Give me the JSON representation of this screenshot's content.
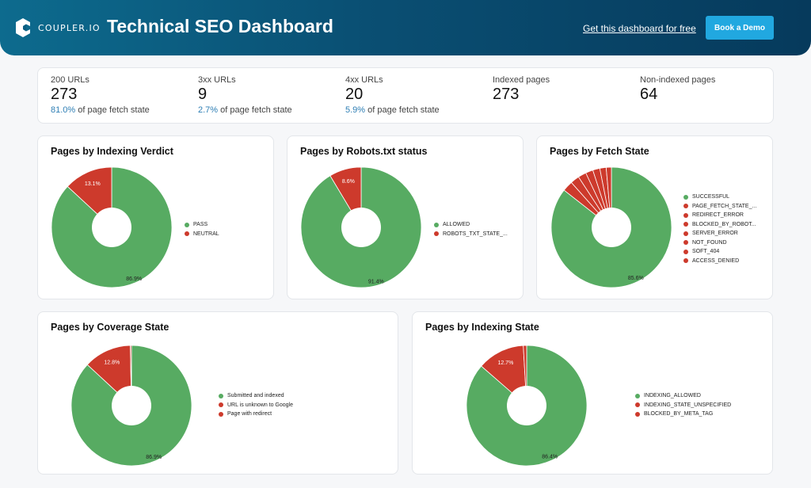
{
  "colors": {
    "green": "#57ab62",
    "red": "#cd3a2c",
    "accent": "#21a8e0"
  },
  "header": {
    "logo_text": "COUPLER.IO",
    "title": "Technical SEO Dashboard",
    "free_link": "Get this dashboard for free",
    "demo_button": "Book a Demo"
  },
  "kpis": [
    {
      "label": "200 URLs",
      "value": "273",
      "pct": "81.0%",
      "sub": " of page fetch state"
    },
    {
      "label": "3xx URLs",
      "value": "9",
      "pct": "2.7%",
      "sub": " of page fetch state"
    },
    {
      "label": "4xx URLs",
      "value": "20",
      "pct": "5.9%",
      "sub": " of page fetch state"
    },
    {
      "label": "Indexed pages",
      "value": "273"
    },
    {
      "label": "Non-indexed pages",
      "value": "64"
    }
  ],
  "chart_data": [
    {
      "type": "pie",
      "title": "Pages by Indexing Verdict",
      "categories": [
        "PASS",
        "NEUTRAL"
      ],
      "values": [
        86.9,
        13.1
      ],
      "labels": [
        "86.9%",
        "13.1%"
      ],
      "colors": [
        "#57ab62",
        "#cd3a2c"
      ],
      "legend": "right"
    },
    {
      "type": "pie",
      "title": "Pages by Robots.txt status",
      "categories": [
        "ALLOWED",
        "ROBOTS_TXT_STATE_..."
      ],
      "values": [
        91.4,
        8.6
      ],
      "labels": [
        "91.4%",
        "8.6%"
      ],
      "colors": [
        "#57ab62",
        "#cd3a2c"
      ],
      "legend": "right"
    },
    {
      "type": "pie",
      "title": "Pages by Fetch State",
      "categories": [
        "SUCCESSFUL",
        "PAGE_FETCH_STATE_...",
        "REDIRECT_ERROR",
        "BLOCKED_BY_ROBOT...",
        "SERVER_ERROR",
        "NOT_FOUND",
        "SOFT_404",
        "ACCESS_DENIED"
      ],
      "values": [
        85.6,
        2.8,
        2.4,
        2.2,
        2.0,
        1.9,
        1.7,
        1.4
      ],
      "labels": [
        "85.6%",
        "",
        "",
        "",
        "",
        "",
        "",
        ""
      ],
      "colors": [
        "#57ab62",
        "#cd3a2c",
        "#cd3a2c",
        "#cd3a2c",
        "#cd3a2c",
        "#cd3a2c",
        "#cd3a2c",
        "#cd3a2c"
      ],
      "legend": "right"
    },
    {
      "type": "pie",
      "title": "Pages by Coverage State",
      "categories": [
        "Submitted and indexed",
        "URL is unknown to Google",
        "Page with redirect"
      ],
      "values": [
        86.9,
        12.8,
        0.3
      ],
      "labels": [
        "86.9%",
        "12.8%",
        ""
      ],
      "colors": [
        "#57ab62",
        "#cd3a2c",
        "#cd3a2c"
      ],
      "legend": "right"
    },
    {
      "type": "pie",
      "title": "Pages by Indexing State",
      "categories": [
        "INDEXING_ALLOWED",
        "INDEXING_STATE_UNSPECIFIED",
        "BLOCKED_BY_META_TAG"
      ],
      "values": [
        86.4,
        12.7,
        0.9
      ],
      "labels": [
        "86.4%",
        "12.7%",
        ""
      ],
      "colors": [
        "#57ab62",
        "#cd3a2c",
        "#cd3a2c"
      ],
      "legend": "right"
    }
  ]
}
